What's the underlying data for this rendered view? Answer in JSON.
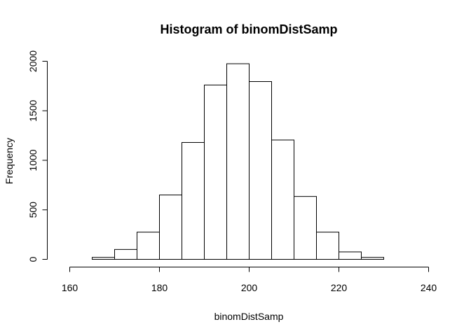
{
  "chart_data": {
    "type": "bar",
    "title": "Histogram of binomDistSamp",
    "xlabel": "binomDistSamp",
    "ylabel": "Frequency",
    "bin_edges": [
      160,
      165,
      170,
      175,
      180,
      185,
      190,
      195,
      200,
      205,
      210,
      215,
      220,
      225,
      230,
      235,
      240
    ],
    "values": [
      0,
      20,
      100,
      275,
      650,
      1180,
      1760,
      1975,
      1795,
      1205,
      635,
      275,
      75,
      20,
      0,
      0
    ],
    "xlim": [
      160,
      240
    ],
    "ylim": [
      0,
      2000
    ],
    "x_ticks": [
      "160",
      "180",
      "200",
      "220",
      "240"
    ],
    "y_ticks": [
      "0",
      "500",
      "1000",
      "1500",
      "2000"
    ],
    "grid": false,
    "legend": "none",
    "bar_fill": "#ffffff",
    "bar_stroke": "#000000"
  }
}
